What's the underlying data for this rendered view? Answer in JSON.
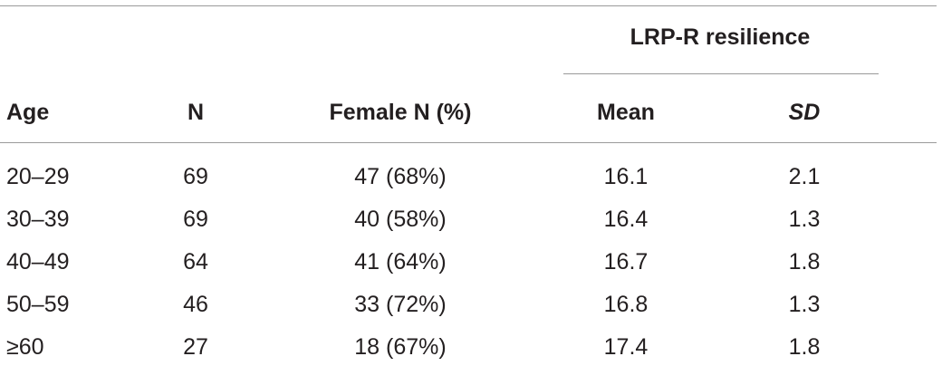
{
  "table": {
    "group_header": "LRP-R resilience",
    "columns": [
      "Age",
      "N",
      "Female N (%)",
      "Mean",
      "SD"
    ],
    "rows": [
      [
        "20–29",
        "69",
        "47 (68%)",
        "16.1",
        "2.1"
      ],
      [
        "30–39",
        "69",
        "40 (58%)",
        "16.4",
        "1.3"
      ],
      [
        "40–49",
        "64",
        "41 (64%)",
        "16.7",
        "1.8"
      ],
      [
        "50–59",
        "46",
        "33 (72%)",
        "16.8",
        "1.3"
      ],
      [
        "≥60",
        "27",
        "18 (67%)",
        "17.4",
        "1.8"
      ]
    ]
  }
}
